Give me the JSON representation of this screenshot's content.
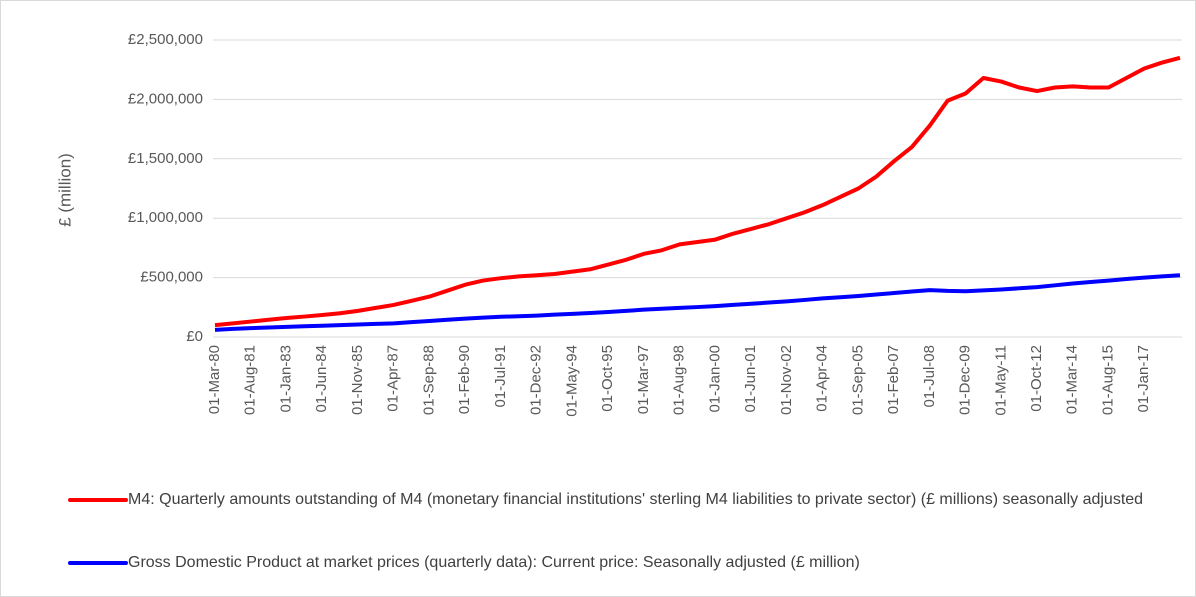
{
  "chart_data": {
    "type": "line",
    "y_label": "£ (million)",
    "categories": [
      "01-Mar-80",
      null,
      "01-Aug-81",
      null,
      "01-Jan-83",
      null,
      "01-Jun-84",
      null,
      "01-Nov-85",
      null,
      "01-Apr-87",
      null,
      "01-Sep-88",
      null,
      "01-Feb-90",
      null,
      "01-Jul-91",
      null,
      "01-Dec-92",
      null,
      "01-May-94",
      null,
      "01-Oct-95",
      null,
      "01-Mar-97",
      null,
      "01-Aug-98",
      null,
      "01-Jan-00",
      null,
      "01-Jun-01",
      null,
      "01-Nov-02",
      null,
      "01-Apr-04",
      null,
      "01-Sep-05",
      null,
      "01-Feb-07",
      null,
      "01-Jul-08",
      null,
      "01-Dec-09",
      null,
      "01-May-11",
      null,
      "01-Oct-12",
      null,
      "01-Mar-14",
      null,
      "01-Aug-15",
      null,
      "01-Jan-17",
      null,
      null
    ],
    "series": [
      {
        "name": "M4: Quarterly amounts outstanding of M4 (monetary financial institutions' sterling M4 liabilities to private sector) (£ millions) seasonally adjusted",
        "color": "#ff0000",
        "values": [
          100000,
          115000,
          130000,
          145000,
          160000,
          172000,
          185000,
          200000,
          220000,
          245000,
          270000,
          305000,
          340000,
          390000,
          440000,
          475000,
          495000,
          510000,
          520000,
          530000,
          550000,
          570000,
          610000,
          650000,
          700000,
          730000,
          780000,
          800000,
          820000,
          870000,
          910000,
          950000,
          1000000,
          1050000,
          1110000,
          1180000,
          1250000,
          1350000,
          1480000,
          1600000,
          1780000,
          1990000,
          2050000,
          2180000,
          2150000,
          2100000,
          2070000,
          2100000,
          2110000,
          2100000,
          2100000,
          2180000,
          2260000,
          2310000,
          2350000
        ]
      },
      {
        "name": "Gross Domestic Product at market prices (quarterly data): Current price: Seasonally adjusted (£ million)",
        "color": "#0000ff",
        "values": [
          60000,
          68000,
          75000,
          80000,
          85000,
          90000,
          95000,
          100000,
          105000,
          110000,
          115000,
          125000,
          135000,
          145000,
          155000,
          163000,
          170000,
          175000,
          180000,
          188000,
          195000,
          202000,
          210000,
          220000,
          230000,
          238000,
          245000,
          252000,
          260000,
          270000,
          280000,
          290000,
          300000,
          312000,
          325000,
          335000,
          345000,
          358000,
          370000,
          383000,
          395000,
          388000,
          385000,
          392000,
          400000,
          410000,
          420000,
          435000,
          450000,
          463000,
          475000,
          488000,
          500000,
          510000,
          520000
        ]
      }
    ],
    "ylim": [
      0,
      2500000
    ],
    "yticks": [
      {
        "value": 0,
        "label": "£0"
      },
      {
        "value": 500000,
        "label": "£500,000"
      },
      {
        "value": 1000000,
        "label": "£1,000,000"
      },
      {
        "value": 1500000,
        "label": "£1,500,000"
      },
      {
        "value": 2000000,
        "label": "£2,000,000"
      },
      {
        "value": 2500000,
        "label": "£2,500,000"
      }
    ],
    "grid": true,
    "legend": "bottom"
  }
}
